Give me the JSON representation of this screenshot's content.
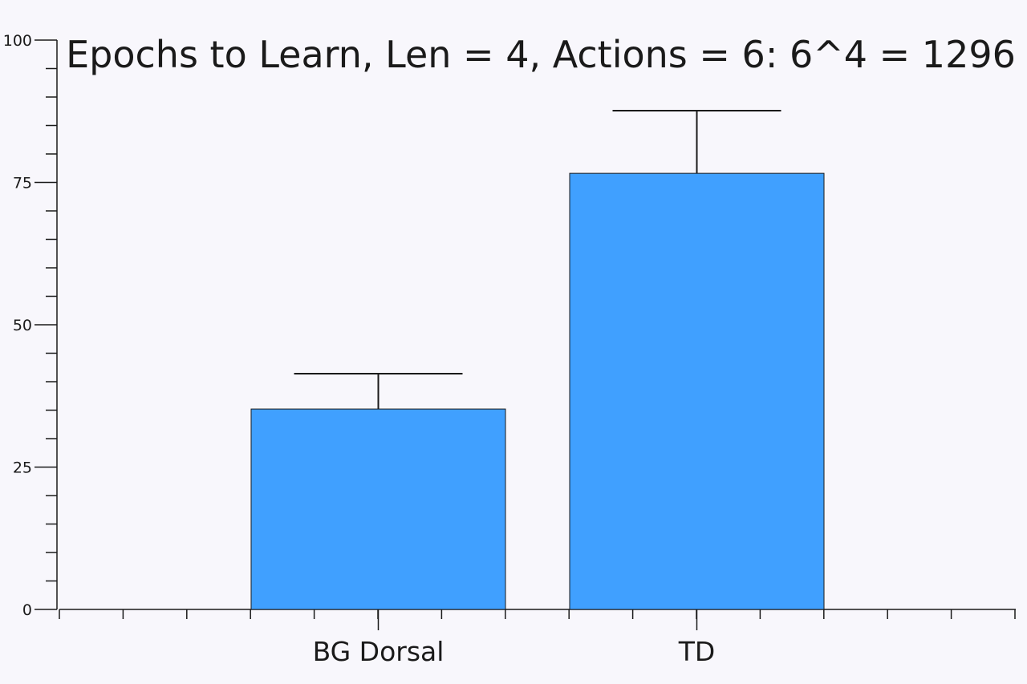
{
  "chart_data": {
    "type": "bar",
    "title": "Epochs to Learn, Len = 4, Actions = 6: 6^4 = 1296",
    "categories": [
      "BG Dorsal",
      "TD"
    ],
    "values": [
      35.2,
      76.6
    ],
    "error_upper": [
      41.4,
      87.6
    ],
    "ylim": [
      0,
      100
    ],
    "y_major_ticks": [
      0,
      25,
      50,
      75,
      100
    ],
    "y_minor_step": 5,
    "xlabel": "",
    "ylabel": "",
    "grid": false,
    "bar_color": "#40a0ff"
  }
}
